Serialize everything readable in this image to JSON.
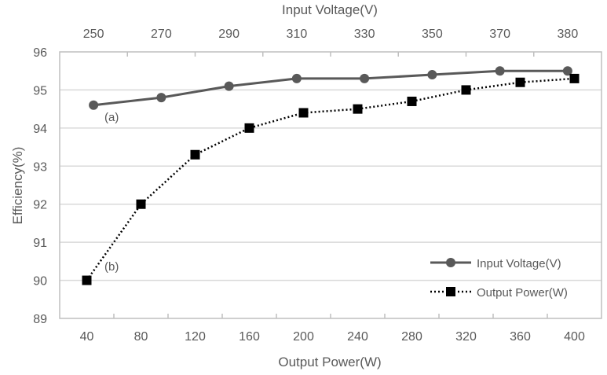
{
  "chart_data": {
    "type": "line",
    "ylabel": "Efficiency(%)",
    "ylim": [
      89,
      96
    ],
    "yticks": [
      "89",
      "90",
      "91",
      "92",
      "93",
      "94",
      "95",
      "96"
    ],
    "grid": true,
    "legend_position": "bottom-right",
    "series": [
      {
        "name": "Input Voltage(V)",
        "axis": "top",
        "xlabel": "Input Voltage(V)",
        "categories": [
          "250",
          "270",
          "290",
          "310",
          "330",
          "350",
          "370",
          "380"
        ],
        "values": [
          94.6,
          94.8,
          95.1,
          95.3,
          95.3,
          95.4,
          95.5,
          95.5
        ],
        "color": "#595959",
        "marker": "circle",
        "line": "solid",
        "annotation": "(a)"
      },
      {
        "name": "Output Power(W)",
        "axis": "bottom",
        "xlabel": "Output Power(W)",
        "categories": [
          "40",
          "80",
          "120",
          "160",
          "200",
          "240",
          "280",
          "320",
          "360",
          "400"
        ],
        "values": [
          90.0,
          92.0,
          93.3,
          94.0,
          94.4,
          94.5,
          94.7,
          95.0,
          95.2,
          95.3
        ],
        "color": "#000000",
        "marker": "square",
        "line": "dotted",
        "annotation": "(b)"
      }
    ]
  }
}
